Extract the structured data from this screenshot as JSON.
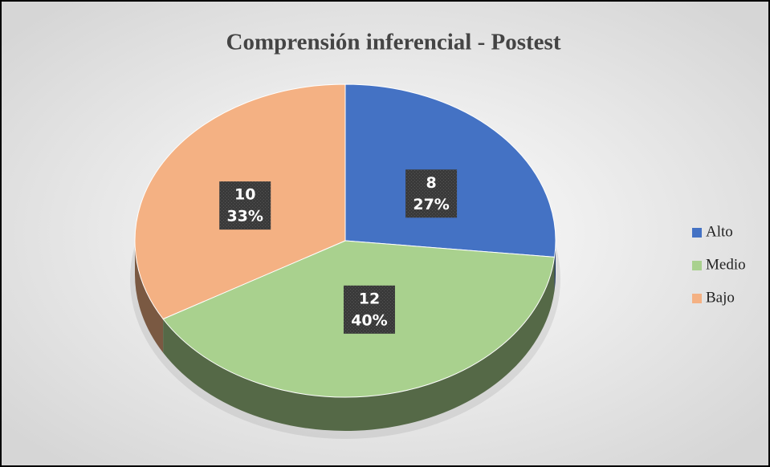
{
  "chart_data": {
    "type": "pie",
    "title": "Comprensión inferencial - Postest",
    "categories": [
      "Alto",
      "Medio",
      "Bajo"
    ],
    "values": [
      8,
      12,
      10
    ],
    "percentages": [
      27,
      40,
      33
    ],
    "percent_labels": [
      "27%",
      "40%",
      "33%"
    ],
    "colors": [
      "#4472c4",
      "#a9d18e",
      "#f4b183"
    ],
    "legend": "right"
  }
}
